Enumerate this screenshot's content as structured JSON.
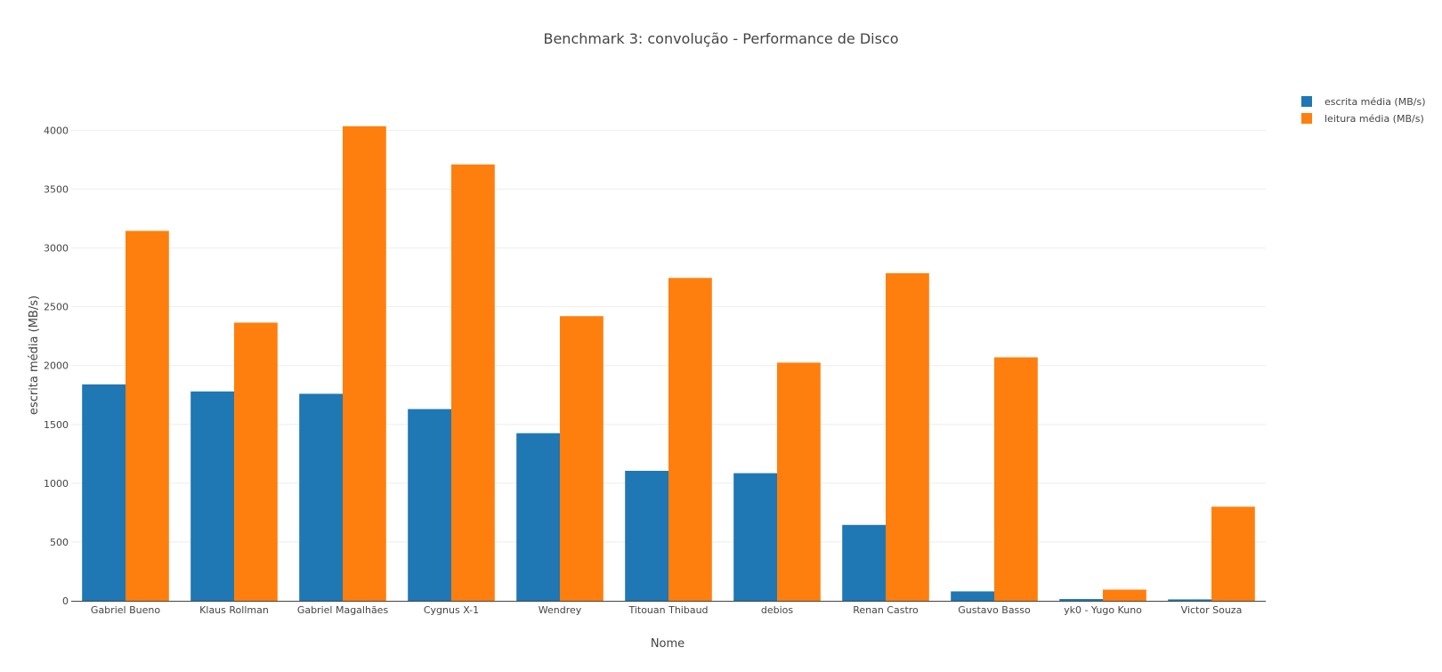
{
  "chart_data": {
    "type": "bar",
    "title": "Benchmark 3: convolução - Performance de Disco",
    "xlabel": "Nome",
    "ylabel": "escrita média (MB/s)",
    "ylim": [
      0,
      4200
    ],
    "yticks": [
      0,
      500,
      1000,
      1500,
      2000,
      2500,
      3000,
      3500,
      4000
    ],
    "grid": true,
    "legend_position": "top-right",
    "categories": [
      "Gabriel Bueno",
      "Klaus Rollman",
      "Gabriel Magalhães",
      "Cygnus X-1",
      "Wendrey",
      "Titouan Thibaud",
      "debios",
      "Renan Castro",
      "Gustavo Basso",
      "yk0 - Yugo Kuno",
      "Victor Souza"
    ],
    "series": [
      {
        "name": "escrita média (MB/s)",
        "color": "#1f77b4",
        "values": [
          1840,
          1780,
          1760,
          1630,
          1425,
          1105,
          1085,
          645,
          80,
          15,
          12
        ]
      },
      {
        "name": "leitura média (MB/s)",
        "color": "#ff7f0e",
        "values": [
          3145,
          2365,
          4035,
          3710,
          2420,
          2745,
          2025,
          2785,
          2070,
          95,
          800
        ]
      }
    ]
  }
}
